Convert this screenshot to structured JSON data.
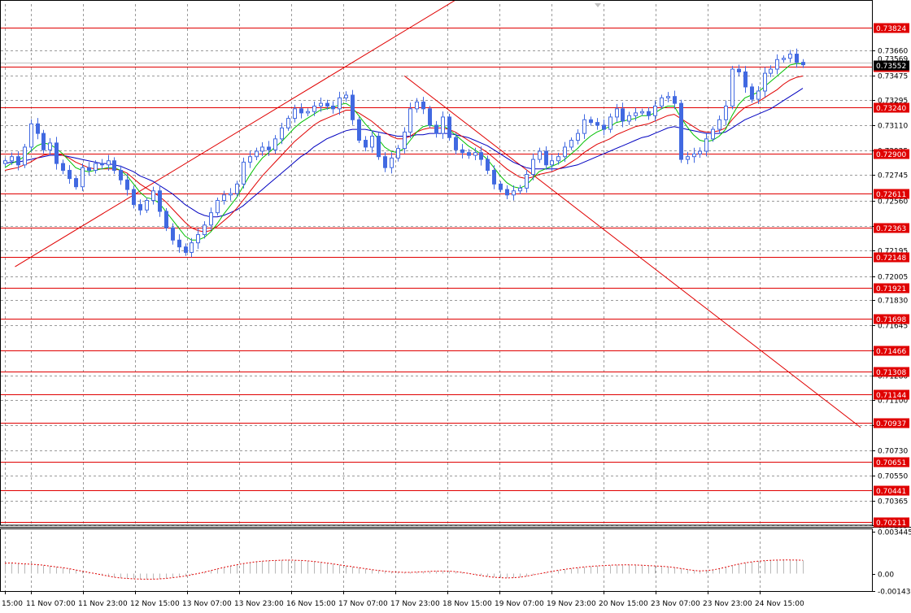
{
  "chart_data": {
    "type": "candlestick",
    "main_panel": {
      "ylim": [
        0.70185,
        0.73996
      ],
      "price_ticks": [
        "0.73660",
        "0.73475",
        "0.73295",
        "0.73110",
        "0.72925",
        "0.72745",
        "0.72560",
        "0.72375",
        "0.72195",
        "0.72005",
        "0.71830",
        "0.71645",
        "0.71465",
        "0.71280",
        "0.71100",
        "0.70915",
        "0.70730",
        "0.70550",
        "0.70365",
        "0.70185"
      ],
      "horizontal_levels": [
        "0.73824",
        "0.73537",
        "0.73240",
        "0.72900",
        "0.72611",
        "0.72363",
        "0.72148",
        "0.71921",
        "0.71698",
        "0.71466",
        "0.71308",
        "0.71144",
        "0.70937",
        "0.70651",
        "0.70441",
        "0.70211"
      ],
      "current_price_labels": [
        "0.73569",
        "0.73552"
      ],
      "trendlines": [
        {
          "from": [
            0.0163,
            0.72075
          ],
          "to": [
            0.5296,
            0.74055
          ]
        },
        {
          "from": [
            0.4633,
            0.73471
          ],
          "to": [
            0.987,
            0.709
          ]
        }
      ],
      "series": [
        {
          "name": "",
          "color": "#4169e1",
          "kind": "candles"
        },
        {
          "name": "",
          "color": "#00c000",
          "kind": "ma-fast"
        },
        {
          "name": "",
          "color": "#e00000",
          "kind": "ma-mid"
        },
        {
          "name": "",
          "color": "#0000c0",
          "kind": "ma-slow"
        }
      ],
      "close": [
        0.7285,
        0.7288,
        0.7282,
        0.7295,
        0.7312,
        0.7305,
        0.7293,
        0.7298,
        0.7283,
        0.7278,
        0.7272,
        0.7266,
        0.728,
        0.7278,
        0.7283,
        0.7282,
        0.7285,
        0.7278,
        0.7271,
        0.7264,
        0.7253,
        0.7249,
        0.7256,
        0.7263,
        0.7248,
        0.7236,
        0.7227,
        0.7222,
        0.7218,
        0.7225,
        0.7231,
        0.7238,
        0.7247,
        0.7256,
        0.726,
        0.7261,
        0.7268,
        0.7284,
        0.7288,
        0.7292,
        0.7295,
        0.7293,
        0.7301,
        0.7309,
        0.7316,
        0.7323,
        0.732,
        0.7321,
        0.7325,
        0.7327,
        0.7325,
        0.7323,
        0.7331,
        0.7333,
        0.7315,
        0.73,
        0.7295,
        0.7303,
        0.7288,
        0.728,
        0.7287,
        0.7294,
        0.7306,
        0.7323,
        0.7328,
        0.7323,
        0.7311,
        0.7305,
        0.7317,
        0.7302,
        0.7293,
        0.7291,
        0.7289,
        0.7291,
        0.7286,
        0.7278,
        0.7268,
        0.7264,
        0.726,
        0.7263,
        0.7265,
        0.7275,
        0.7286,
        0.7292,
        0.7282,
        0.7285,
        0.7288,
        0.7295,
        0.73,
        0.7305,
        0.7315,
        0.7313,
        0.7311,
        0.7308,
        0.7317,
        0.7323,
        0.7314,
        0.7318,
        0.732,
        0.7321,
        0.7318,
        0.7325,
        0.7331,
        0.7332,
        0.7327,
        0.7286,
        0.7288,
        0.729,
        0.7292,
        0.7301,
        0.7308,
        0.7315,
        0.7325,
        0.7352,
        0.735,
        0.7339,
        0.733,
        0.7336,
        0.7349,
        0.7352,
        0.7359,
        0.736,
        0.7363,
        0.7357,
        0.73552
      ],
      "ma_fast": [
        0.728,
        0.7283,
        0.7285,
        0.7288,
        0.7292,
        0.7296,
        0.7298,
        0.7297,
        0.7294,
        0.729,
        0.7285,
        0.728,
        0.7278,
        0.7277,
        0.7278,
        0.7279,
        0.728,
        0.728,
        0.7278,
        0.7274,
        0.7268,
        0.7262,
        0.7258,
        0.7257,
        0.7254,
        0.7248,
        0.7242,
        0.7236,
        0.723,
        0.7227,
        0.7227,
        0.7229,
        0.7233,
        0.7239,
        0.7246,
        0.7252,
        0.7258,
        0.7266,
        0.7274,
        0.7281,
        0.7287,
        0.7291,
        0.7295,
        0.7299,
        0.7304,
        0.7309,
        0.7313,
        0.7316,
        0.7319,
        0.7322,
        0.7323,
        0.7324,
        0.7326,
        0.7327,
        0.7324,
        0.7318,
        0.7312,
        0.7307,
        0.7301,
        0.7295,
        0.7292,
        0.7291,
        0.7294,
        0.73,
        0.7306,
        0.731,
        0.7311,
        0.731,
        0.7311,
        0.7308,
        0.7304,
        0.73,
        0.7296,
        0.7293,
        0.729,
        0.7286,
        0.728,
        0.7274,
        0.7269,
        0.7266,
        0.7265,
        0.7267,
        0.7272,
        0.7277,
        0.7279,
        0.7281,
        0.7283,
        0.7286,
        0.729,
        0.7294,
        0.7299,
        0.7303,
        0.7306,
        0.7308,
        0.731,
        0.7313,
        0.7314,
        0.7315,
        0.7316,
        0.7318,
        0.7318,
        0.732,
        0.7323,
        0.7325,
        0.7325,
        0.7317,
        0.731,
        0.7304,
        0.73,
        0.7299,
        0.73,
        0.7303,
        0.7308,
        0.7318,
        0.7326,
        0.7331,
        0.7333,
        0.7335,
        0.7339,
        0.7343,
        0.7347,
        0.7351,
        0.7355,
        0.7356,
        0.7356
      ],
      "ma_mid": [
        0.7278,
        0.7279,
        0.728,
        0.7282,
        0.7284,
        0.7287,
        0.7289,
        0.729,
        0.729,
        0.7289,
        0.7287,
        0.7284,
        0.7282,
        0.728,
        0.7279,
        0.7279,
        0.7279,
        0.7279,
        0.7278,
        0.7276,
        0.7272,
        0.7268,
        0.7265,
        0.7262,
        0.7259,
        0.7255,
        0.725,
        0.7245,
        0.724,
        0.7236,
        0.7234,
        0.7233,
        0.7234,
        0.7237,
        0.7241,
        0.7245,
        0.725,
        0.7256,
        0.7262,
        0.7268,
        0.7274,
        0.7279,
        0.7284,
        0.7289,
        0.7294,
        0.7299,
        0.7303,
        0.7307,
        0.7311,
        0.7314,
        0.7316,
        0.7318,
        0.732,
        0.7322,
        0.7322,
        0.732,
        0.7317,
        0.7314,
        0.731,
        0.7306,
        0.7303,
        0.7301,
        0.7301,
        0.7303,
        0.7306,
        0.7308,
        0.7309,
        0.7309,
        0.7309,
        0.7308,
        0.7306,
        0.7303,
        0.73,
        0.7297,
        0.7294,
        0.7291,
        0.7287,
        0.7283,
        0.7279,
        0.7276,
        0.7273,
        0.7272,
        0.7273,
        0.7275,
        0.7276,
        0.7277,
        0.7279,
        0.7281,
        0.7284,
        0.7287,
        0.7291,
        0.7294,
        0.7297,
        0.7299,
        0.7301,
        0.7304,
        0.7306,
        0.7308,
        0.731,
        0.7311,
        0.7312,
        0.7314,
        0.7316,
        0.7318,
        0.7319,
        0.7316,
        0.7313,
        0.731,
        0.7307,
        0.7306,
        0.7306,
        0.7307,
        0.7309,
        0.7315,
        0.732,
        0.7324,
        0.7326,
        0.7328,
        0.7331,
        0.7334,
        0.7337,
        0.7341,
        0.7344,
        0.7346,
        0.7347
      ],
      "ma_slow": [
        0.7283,
        0.7284,
        0.7284,
        0.7285,
        0.7286,
        0.7287,
        0.7288,
        0.7289,
        0.7289,
        0.7289,
        0.7288,
        0.7287,
        0.7286,
        0.7285,
        0.7284,
        0.7283,
        0.7283,
        0.7282,
        0.7281,
        0.7279,
        0.7277,
        0.7274,
        0.7272,
        0.727,
        0.7267,
        0.7264,
        0.7261,
        0.7257,
        0.7253,
        0.725,
        0.7247,
        0.7245,
        0.7244,
        0.7244,
        0.7245,
        0.7247,
        0.7249,
        0.7252,
        0.7256,
        0.726,
        0.7264,
        0.7268,
        0.7272,
        0.7276,
        0.728,
        0.7284,
        0.7288,
        0.7291,
        0.7295,
        0.7298,
        0.7301,
        0.7303,
        0.7305,
        0.7307,
        0.7308,
        0.7308,
        0.7308,
        0.7307,
        0.7306,
        0.7305,
        0.7304,
        0.7303,
        0.7303,
        0.7303,
        0.7304,
        0.7304,
        0.7305,
        0.7305,
        0.7305,
        0.7305,
        0.7304,
        0.7303,
        0.7302,
        0.73,
        0.7298,
        0.7296,
        0.7293,
        0.729,
        0.7287,
        0.7284,
        0.7282,
        0.728,
        0.7279,
        0.7279,
        0.7279,
        0.7279,
        0.7279,
        0.728,
        0.7281,
        0.7282,
        0.7284,
        0.7286,
        0.7288,
        0.729,
        0.7292,
        0.7294,
        0.7296,
        0.7298,
        0.73,
        0.7302,
        0.7303,
        0.7305,
        0.7307,
        0.7309,
        0.731,
        0.7309,
        0.7308,
        0.7307,
        0.7306,
        0.7305,
        0.7305,
        0.7305,
        0.7306,
        0.7309,
        0.7312,
        0.7315,
        0.7317,
        0.7319,
        0.7321,
        0.7323,
        0.7326,
        0.7329,
        0.7332,
        0.7335,
        0.7338
      ]
    },
    "indicator_panel": {
      "ylim": [
        -0.001436,
        0.003445
      ],
      "ticks": [
        "0.003445",
        "0.00",
        "-0.001436"
      ],
      "color": "#e00000",
      "values": [
        0.00085,
        0.00088,
        0.00084,
        0.0008,
        0.00078,
        0.00074,
        0.00069,
        0.00062,
        0.00055,
        0.00048,
        0.0004,
        0.0003,
        0.0002,
        0.0001,
        0.0,
        -0.0001,
        -0.0002,
        -0.0003,
        -0.00036,
        -0.0004,
        -0.00043,
        -0.00045,
        -0.00046,
        -0.00046,
        -0.00044,
        -0.0004,
        -0.00034,
        -0.00028,
        -0.0002,
        -0.0001,
        0.0,
        0.00012,
        0.00025,
        0.00038,
        0.0005,
        0.00062,
        0.00072,
        0.00082,
        0.0009,
        0.00097,
        0.00102,
        0.00106,
        0.00108,
        0.0011,
        0.00111,
        0.0011,
        0.00108,
        0.00105,
        0.001,
        0.00094,
        0.00087,
        0.0008,
        0.00072,
        0.00064,
        0.00056,
        0.00048,
        0.0004,
        0.00033,
        0.00026,
        0.0002,
        0.00015,
        0.00012,
        0.0001,
        0.0001,
        0.00012,
        0.00015,
        0.00018,
        0.0002,
        0.00021,
        0.0002,
        0.00016,
        0.0001,
        2e-05,
        -7e-05,
        -0.00016,
        -0.00024,
        -0.0003,
        -0.00034,
        -0.00036,
        -0.00034,
        -0.0003,
        -0.00022,
        -0.00012,
        -2e-05,
        8e-05,
        0.00018,
        0.00027,
        0.00035,
        0.00042,
        0.00048,
        0.00054,
        0.00059,
        0.00063,
        0.00066,
        0.00069,
        0.00071,
        0.00072,
        0.00072,
        0.00071,
        0.00069,
        0.00066,
        0.00063,
        0.0006,
        0.00056,
        0.0005,
        0.00042,
        0.00034,
        0.00026,
        0.00022,
        0.00024,
        0.0003,
        0.0004,
        0.00052,
        0.00066,
        0.00078,
        0.00088,
        0.00096,
        0.00102,
        0.00106,
        0.00109,
        0.00111,
        0.00112,
        0.00112,
        0.00111,
        0.0011
      ]
    },
    "time_labels": [
      "15:00",
      "11 Nov 07:00",
      "11 Nov 23:00",
      "12 Nov 15:00",
      "13 Nov 07:00",
      "13 Nov 23:00",
      "16 Nov 15:00",
      "17 Nov 07:00",
      "17 Nov 23:00",
      "18 Nov 15:00",
      "19 Nov 07:00",
      "19 Nov 23:00",
      "20 Nov 15:00",
      "23 Nov 07:00",
      "23 Nov 23:00",
      "24 Nov 15:00"
    ],
    "grid": true
  }
}
